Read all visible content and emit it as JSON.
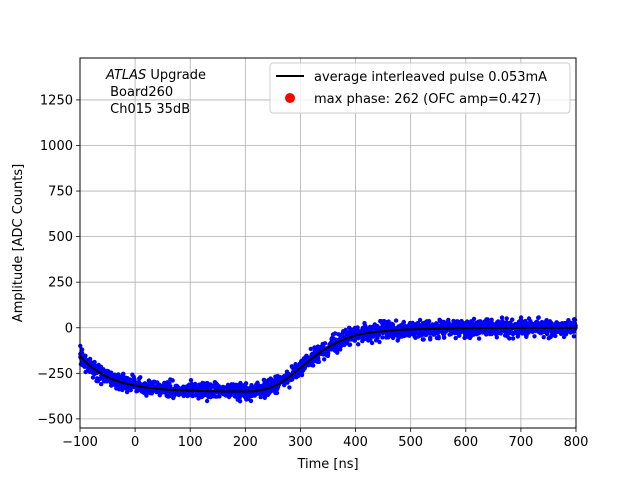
{
  "chart_data": {
    "type": "scatter",
    "xlabel": "Time [ns]",
    "ylabel": "Amplitude [ADC Counts]",
    "xlim": [
      -100,
      800
    ],
    "ylim": [
      -550,
      1480
    ],
    "x_ticks": [
      -100,
      0,
      100,
      200,
      300,
      400,
      500,
      600,
      700,
      800
    ],
    "y_ticks": [
      -500,
      -250,
      0,
      250,
      500,
      750,
      1000,
      1250
    ],
    "grid": true,
    "legend_placement": "top-right",
    "annotation": {
      "line1_italic": "ATLAS",
      "line1_rest": " Upgrade",
      "line2": " Board260",
      "line3": " Ch015 35dB"
    },
    "series": [
      {
        "name": "average interleaved pulse 0.053mA",
        "kind": "line",
        "color": "#000000",
        "x": [
          -100,
          -80,
          -60,
          -40,
          -20,
          0,
          20,
          40,
          60,
          80,
          100,
          120,
          140,
          160,
          180,
          200,
          220,
          240,
          260,
          280,
          300,
          320,
          340,
          360,
          380,
          400,
          420,
          440,
          460,
          480,
          500,
          550,
          600,
          650,
          700,
          750,
          800
        ],
        "y": [
          -155,
          -215,
          -255,
          -285,
          -305,
          -318,
          -328,
          -335,
          -340,
          -343,
          -345,
          -347,
          -348,
          -349,
          -350,
          -350,
          -347,
          -335,
          -310,
          -270,
          -220,
          -170,
          -125,
          -90,
          -62,
          -42,
          -30,
          -22,
          -16,
          -12,
          -9,
          -5,
          -3,
          -2,
          -1,
          -1,
          -1
        ]
      },
      {
        "name": "max phase: 262 (OFC amp=0.427)",
        "kind": "scatter",
        "color": "#ff0000",
        "x": [],
        "y": []
      }
    ],
    "scatter_cloud": {
      "color": "#0000ff",
      "approx_spread": 40,
      "follows_series": 0
    }
  }
}
